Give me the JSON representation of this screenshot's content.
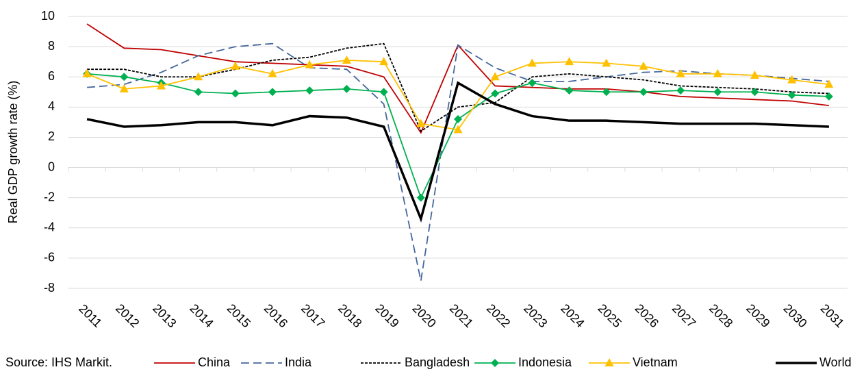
{
  "chart_data": {
    "type": "line",
    "y_label": "Real GDP growth rate (%)",
    "source": "Source: IHS Markit.",
    "categories": [
      "2011",
      "2012",
      "2013",
      "2014",
      "2015",
      "2016",
      "2017",
      "2018",
      "2019",
      "2020",
      "2021",
      "2022",
      "2023",
      "2024",
      "2025",
      "2026",
      "2027",
      "2028",
      "2029",
      "2030",
      "2031"
    ],
    "series": [
      {
        "name": "China",
        "color": "#c00000",
        "line_style": "solid",
        "marker": null,
        "values": [
          9.5,
          7.9,
          7.8,
          7.4,
          7.0,
          6.9,
          6.8,
          6.7,
          6.0,
          2.3,
          8.1,
          5.4,
          5.3,
          5.2,
          5.2,
          5.0,
          4.7,
          4.6,
          4.5,
          4.4,
          4.1
        ]
      },
      {
        "name": "India",
        "color": "#44679a",
        "line_style": "dashed",
        "marker": null,
        "values": [
          5.3,
          5.5,
          6.3,
          7.4,
          8.0,
          8.2,
          6.6,
          6.5,
          4.2,
          -7.5,
          8.1,
          6.6,
          5.7,
          5.7,
          6.0,
          6.3,
          6.4,
          6.2,
          6.1,
          5.9,
          5.7
        ]
      },
      {
        "name": "Bangladesh",
        "color": "#000000",
        "line_style": "dotted",
        "marker": null,
        "values": [
          6.5,
          6.5,
          6.0,
          6.0,
          6.5,
          7.1,
          7.3,
          7.9,
          8.2,
          2.4,
          4.0,
          4.3,
          6.0,
          6.2,
          6.0,
          5.8,
          5.4,
          5.3,
          5.2,
          5.0,
          4.9
        ]
      },
      {
        "name": "Indonesia",
        "color": "#00b050",
        "line_style": "solid",
        "marker": "diamond",
        "values": [
          6.2,
          6.0,
          5.6,
          5.0,
          4.9,
          5.0,
          5.1,
          5.2,
          5.0,
          -2.0,
          3.2,
          4.9,
          5.6,
          5.1,
          5.0,
          5.0,
          5.1,
          5.0,
          5.0,
          4.8,
          4.7
        ]
      },
      {
        "name": "Vietnam",
        "color": "#ffc000",
        "line_style": "solid",
        "marker": "triangle",
        "values": [
          6.2,
          5.2,
          5.4,
          6.0,
          6.7,
          6.2,
          6.8,
          7.1,
          7.0,
          2.9,
          2.5,
          6.0,
          6.9,
          7.0,
          6.9,
          6.7,
          6.2,
          6.2,
          6.1,
          5.8,
          5.5
        ]
      },
      {
        "name": "World",
        "color": "#000000",
        "line_style": "bold",
        "marker": null,
        "values": [
          3.2,
          2.7,
          2.8,
          3.0,
          3.0,
          2.8,
          3.4,
          3.3,
          2.7,
          -3.4,
          5.6,
          4.2,
          3.4,
          3.1,
          3.1,
          3.0,
          2.9,
          2.9,
          2.9,
          2.8,
          2.7
        ]
      }
    ],
    "ylim": [
      -8,
      10
    ],
    "yticks": [
      -8,
      -6,
      -4,
      -2,
      0,
      2,
      4,
      6,
      8,
      10
    ],
    "grid": true
  }
}
